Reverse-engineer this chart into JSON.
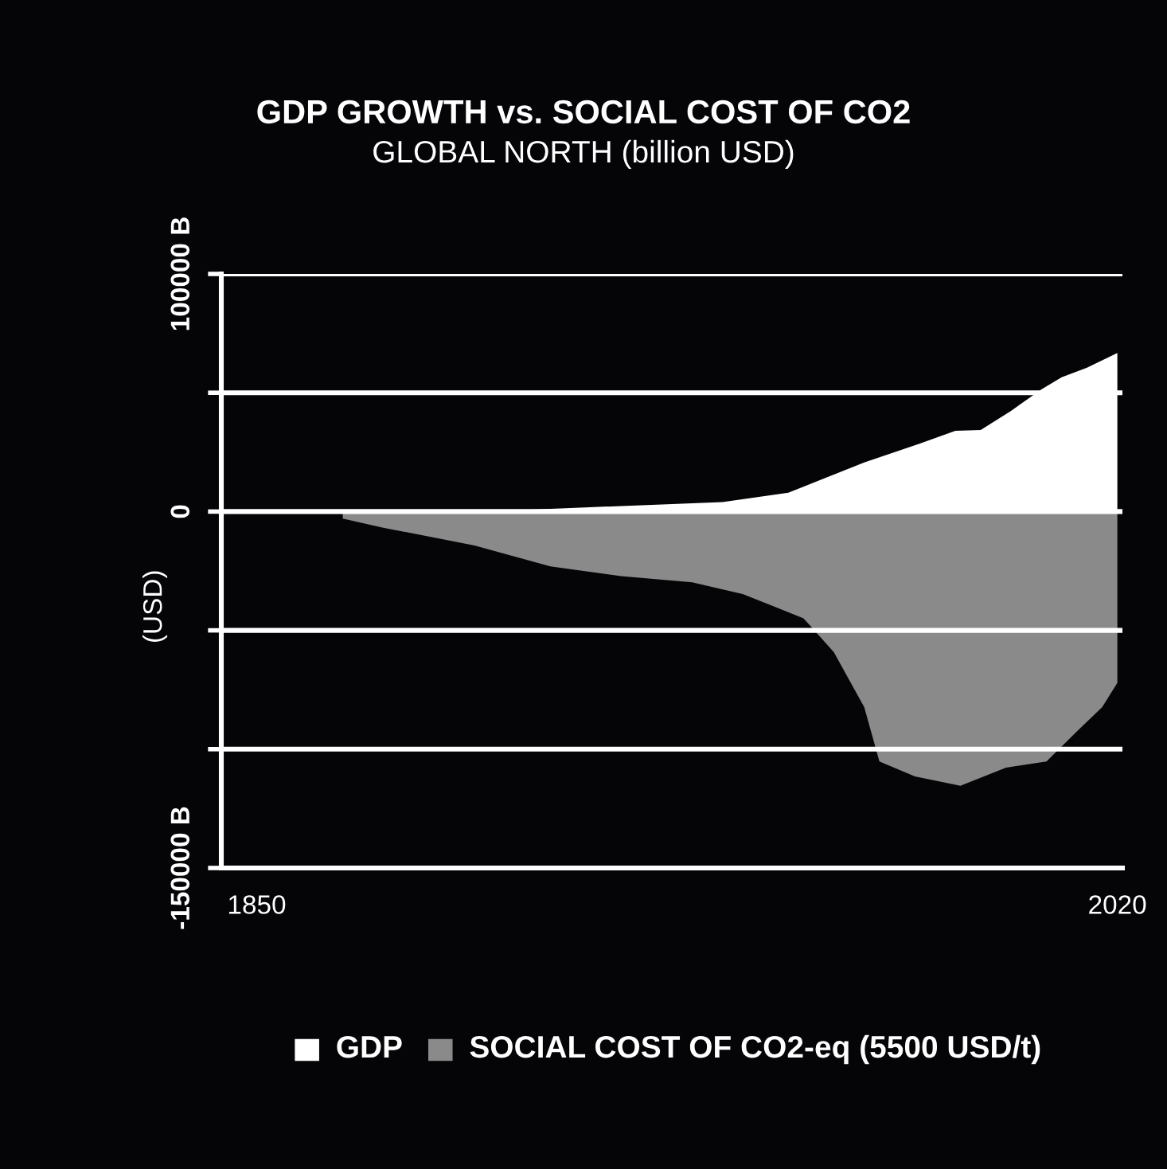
{
  "chart_data": {
    "type": "area",
    "title": "GDP GROWTH vs. SOCIAL COST OF CO2",
    "subtitle": "GLOBAL NORTH (billion USD)",
    "ylabel": "(USD)",
    "xlim": [
      1843,
      2021
    ],
    "xticks": [
      1850,
      2020
    ],
    "ylim": [
      -150000,
      100000
    ],
    "yticks": [
      {
        "value": -150000,
        "label": "-150000 B"
      },
      {
        "value": -100000,
        "label": null
      },
      {
        "value": -50000,
        "label": null
      },
      0,
      {
        "value": 50000,
        "label": null
      },
      {
        "value": 100000,
        "label": "100000 B"
      }
    ],
    "grid": "y",
    "legend": "bottom",
    "series": [
      {
        "name": "GDP",
        "color": "#ffffff",
        "x": [
          1850,
          1900,
          1911,
          1942,
          1955,
          1970,
          1981,
          1988,
          1993,
          1999,
          2005,
          2009,
          2014,
          2020
        ],
        "values": [
          0,
          500,
          1400,
          4000,
          7900,
          20700,
          28600,
          34000,
          34300,
          42400,
          51400,
          56500,
          60500,
          66700
        ]
      },
      {
        "name": "SOCIAL COST OF CO2-eq (5500 USD/t)",
        "color": "#8a8a8a",
        "x": [
          1867,
          1875,
          1893,
          1908,
          1922,
          1936,
          1946,
          1958,
          1964,
          1970,
          1973,
          1980,
          1989,
          1998,
          2006,
          2012,
          2017,
          2020
        ],
        "values": [
          -3000,
          -6800,
          -14300,
          -23100,
          -27200,
          -29800,
          -34700,
          -44900,
          -59200,
          -82300,
          -105200,
          -111500,
          -115400,
          -107800,
          -105200,
          -92500,
          -82300,
          -72100
        ]
      }
    ]
  }
}
